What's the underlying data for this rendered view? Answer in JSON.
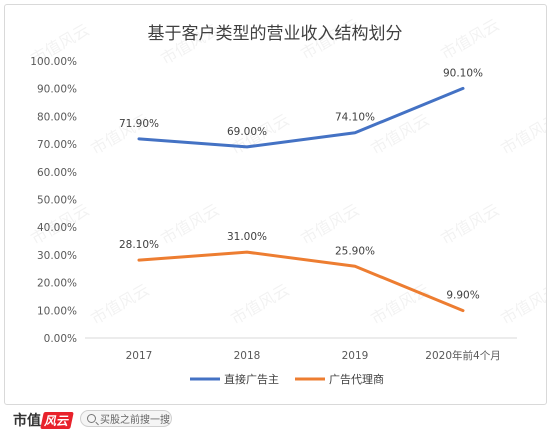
{
  "chart_data": {
    "type": "line",
    "title": "基于客户类型的营业收入结构划分",
    "categories": [
      "2017",
      "2018",
      "2019",
      "2020年前4个月"
    ],
    "yticks": [
      "0.00%",
      "10.00%",
      "20.00%",
      "30.00%",
      "40.00%",
      "50.00%",
      "60.00%",
      "70.00%",
      "80.00%",
      "90.00%",
      "100.00%"
    ],
    "ylim": [
      0,
      100
    ],
    "grid": false,
    "legend_position": "bottom",
    "series": [
      {
        "name": "直接广告主",
        "color": "#4472c4",
        "values": [
          71.9,
          69.0,
          74.1,
          90.1
        ],
        "labels": [
          "71.90%",
          "69.00%",
          "74.10%",
          "90.10%"
        ]
      },
      {
        "name": "广告代理商",
        "color": "#ed7d31",
        "values": [
          28.1,
          31.0,
          25.9,
          9.9
        ],
        "labels": [
          "28.10%",
          "31.00%",
          "25.90%",
          "9.90%"
        ]
      }
    ]
  },
  "footer": {
    "brand": "市值",
    "brand_mark": "风云",
    "search_icon": "search-icon",
    "search_placeholder": "买股之前搜一搜"
  },
  "watermark": "市值风云"
}
